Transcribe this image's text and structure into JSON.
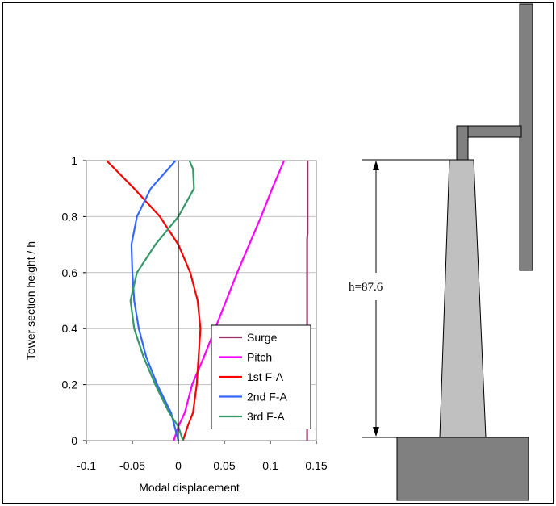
{
  "chart_data": {
    "type": "line",
    "xlabel": "Modal displacement",
    "ylabel": "Tower section height / h",
    "xlim": [
      -0.1,
      0.15
    ],
    "ylim": [
      0,
      1
    ],
    "xticks": [
      "-0.1",
      "-0.05",
      "0",
      "0.05",
      "0.1",
      "0.15"
    ],
    "yticks": [
      "0",
      "0.2",
      "0.4",
      "0.6",
      "0.8",
      "1"
    ],
    "grid": "horizontal",
    "legend_position": "bottom-right",
    "series": [
      {
        "name": "Surge",
        "color": "#993366",
        "points": [
          [
            0.14,
            0
          ],
          [
            0.14,
            0.2
          ],
          [
            0.14,
            0.4
          ],
          [
            0.14,
            0.6
          ],
          [
            0.14,
            0.72
          ],
          [
            0.1405,
            0.74
          ],
          [
            0.1405,
            1
          ]
        ]
      },
      {
        "name": "Pitch",
        "color": "#ff00ff",
        "points": [
          [
            -0.005,
            0
          ],
          [
            0.0,
            0.05
          ],
          [
            0.007,
            0.1
          ],
          [
            0.015,
            0.2
          ],
          [
            0.028,
            0.3
          ],
          [
            0.04,
            0.4
          ],
          [
            0.052,
            0.5
          ],
          [
            0.064,
            0.6
          ],
          [
            0.077,
            0.7
          ],
          [
            0.09,
            0.8
          ],
          [
            0.102,
            0.9
          ],
          [
            0.115,
            1
          ]
        ]
      },
      {
        "name": "1st F-A",
        "color": "#ff0000",
        "points": [
          [
            0.005,
            0
          ],
          [
            0.01,
            0.05
          ],
          [
            0.016,
            0.1
          ],
          [
            0.02,
            0.2
          ],
          [
            0.022,
            0.3
          ],
          [
            0.024,
            0.4
          ],
          [
            0.021,
            0.5
          ],
          [
            0.013,
            0.6
          ],
          [
            0.0,
            0.7
          ],
          [
            -0.02,
            0.8
          ],
          [
            -0.048,
            0.9
          ],
          [
            -0.078,
            1
          ]
        ]
      },
      {
        "name": "2nd F-A",
        "color": "#3366ff",
        "points": [
          [
            0.0,
            0
          ],
          [
            -0.008,
            0.1
          ],
          [
            -0.023,
            0.2
          ],
          [
            -0.035,
            0.3
          ],
          [
            -0.043,
            0.4
          ],
          [
            -0.048,
            0.5
          ],
          [
            -0.05,
            0.6
          ],
          [
            -0.051,
            0.7
          ],
          [
            -0.045,
            0.8
          ],
          [
            -0.03,
            0.9
          ],
          [
            -0.003,
            1
          ]
        ]
      },
      {
        "name": "3rd F-A",
        "color": "#339966",
        "points": [
          [
            0.005,
            0
          ],
          [
            0.0,
            0.05
          ],
          [
            -0.01,
            0.1
          ],
          [
            -0.025,
            0.2
          ],
          [
            -0.038,
            0.3
          ],
          [
            -0.048,
            0.4
          ],
          [
            -0.052,
            0.5
          ],
          [
            -0.045,
            0.6
          ],
          [
            -0.025,
            0.7
          ],
          [
            0.0,
            0.8
          ],
          [
            0.017,
            0.9
          ],
          [
            0.016,
            0.97
          ],
          [
            0.012,
            1
          ]
        ]
      }
    ]
  },
  "diagram": {
    "height_label": "h=87.6",
    "colors": {
      "tower": "#c0c0c0",
      "base": "#808080",
      "arm": "#808080"
    }
  }
}
